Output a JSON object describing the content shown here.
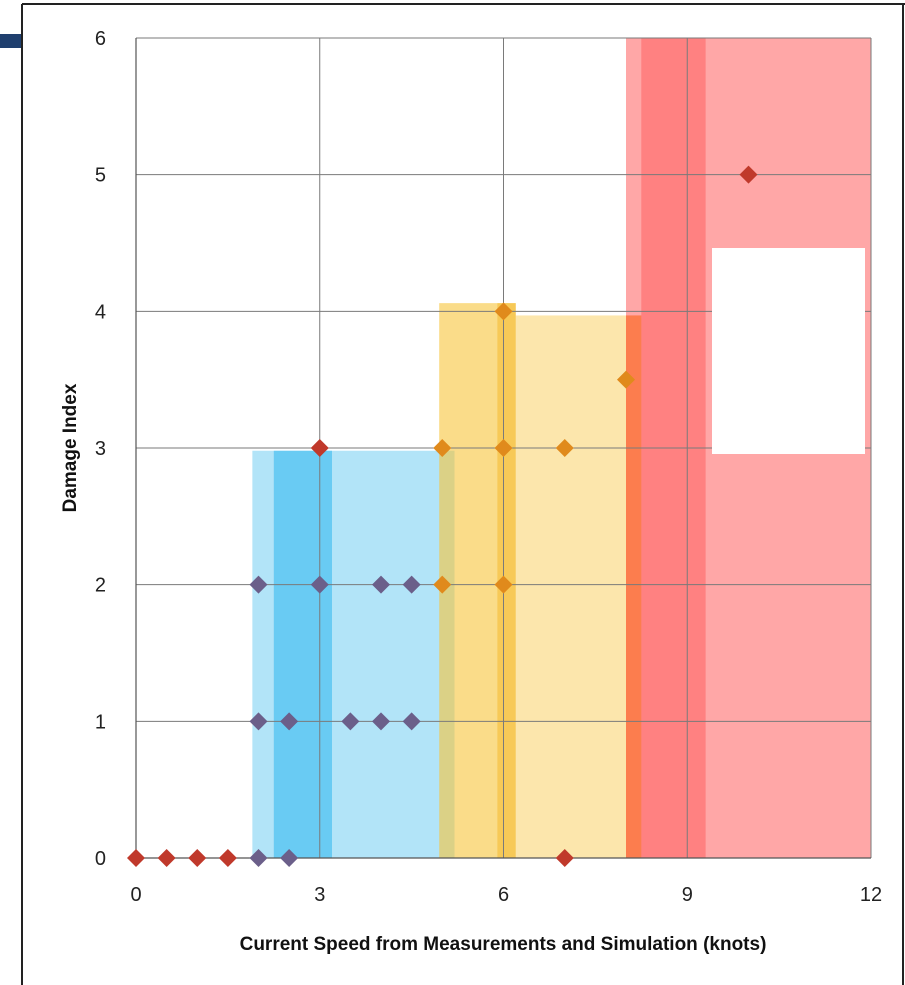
{
  "chart_data": {
    "type": "scatter",
    "title": "",
    "xlabel": "Current Speed from Measurements and Simulation (knots)",
    "ylabel": "Damage Index",
    "xlim": [
      0,
      12
    ],
    "ylim": [
      0,
      6
    ],
    "x_ticks": [
      "0",
      "3",
      "6",
      "9",
      "12"
    ],
    "y_ticks": [
      "0",
      "1",
      "2",
      "3",
      "4",
      "5",
      "6"
    ],
    "grid": true,
    "points": [
      {
        "x": 0,
        "y": 0
      },
      {
        "x": 0.5,
        "y": 0
      },
      {
        "x": 1,
        "y": 0
      },
      {
        "x": 1.5,
        "y": 0
      },
      {
        "x": 2,
        "y": 0
      },
      {
        "x": 2.5,
        "y": 0
      },
      {
        "x": 7,
        "y": 0
      },
      {
        "x": 2,
        "y": 1
      },
      {
        "x": 2.5,
        "y": 1
      },
      {
        "x": 3.5,
        "y": 1
      },
      {
        "x": 4,
        "y": 1
      },
      {
        "x": 4.5,
        "y": 1
      },
      {
        "x": 2,
        "y": 2
      },
      {
        "x": 3,
        "y": 2
      },
      {
        "x": 4,
        "y": 2
      },
      {
        "x": 4.5,
        "y": 2
      },
      {
        "x": 5,
        "y": 2
      },
      {
        "x": 6,
        "y": 2
      },
      {
        "x": 3,
        "y": 3
      },
      {
        "x": 5,
        "y": 3
      },
      {
        "x": 6,
        "y": 3
      },
      {
        "x": 7,
        "y": 3
      },
      {
        "x": 8,
        "y": 3.5
      },
      {
        "x": 6,
        "y": 4
      },
      {
        "x": 10,
        "y": 5
      }
    ],
    "regions": [
      {
        "x0": 1.9,
        "x1": 5.2,
        "y0": 0,
        "y1": 2.98,
        "color": "#55c3f0",
        "opacity": 0.45
      },
      {
        "x0": 2.25,
        "x1": 3.2,
        "y0": 0,
        "y1": 2.98,
        "color": "#2eb6ef",
        "opacity": 0.55
      },
      {
        "x0": 4.95,
        "x1": 6.2,
        "y0": 0,
        "y1": 4.06,
        "color": "#f7c43a",
        "opacity": 0.6
      },
      {
        "x0": 6.2,
        "x1": 8.25,
        "y0": 0,
        "y1": 3.97,
        "color": "#f7c43a",
        "opacity": 0.42
      },
      {
        "x0": 5.9,
        "x1": 6.2,
        "y0": 0,
        "y1": 4.06,
        "color": "#f5b21a",
        "opacity": 0.45
      },
      {
        "x0": 8.0,
        "x1": 8.25,
        "y0": 0,
        "y1": 3.97,
        "color": "#f7902a",
        "opacity": 0.6
      },
      {
        "x0": 8.0,
        "x1": 12,
        "y0": 0,
        "y1": 6,
        "color": "#ff3b3b",
        "opacity": 0.45
      },
      {
        "x0": 8.25,
        "x1": 9.3,
        "y0": 0,
        "y1": 6,
        "color": "#ff3b3b",
        "opacity": 0.35
      }
    ],
    "colors": {
      "marker": "#c0392b",
      "marker_on_blue": "#6b5f8a",
      "marker_on_yellow": "#e08a1c",
      "grid": "#7a7a7a",
      "frame_accent": "#1f3f6e"
    }
  }
}
